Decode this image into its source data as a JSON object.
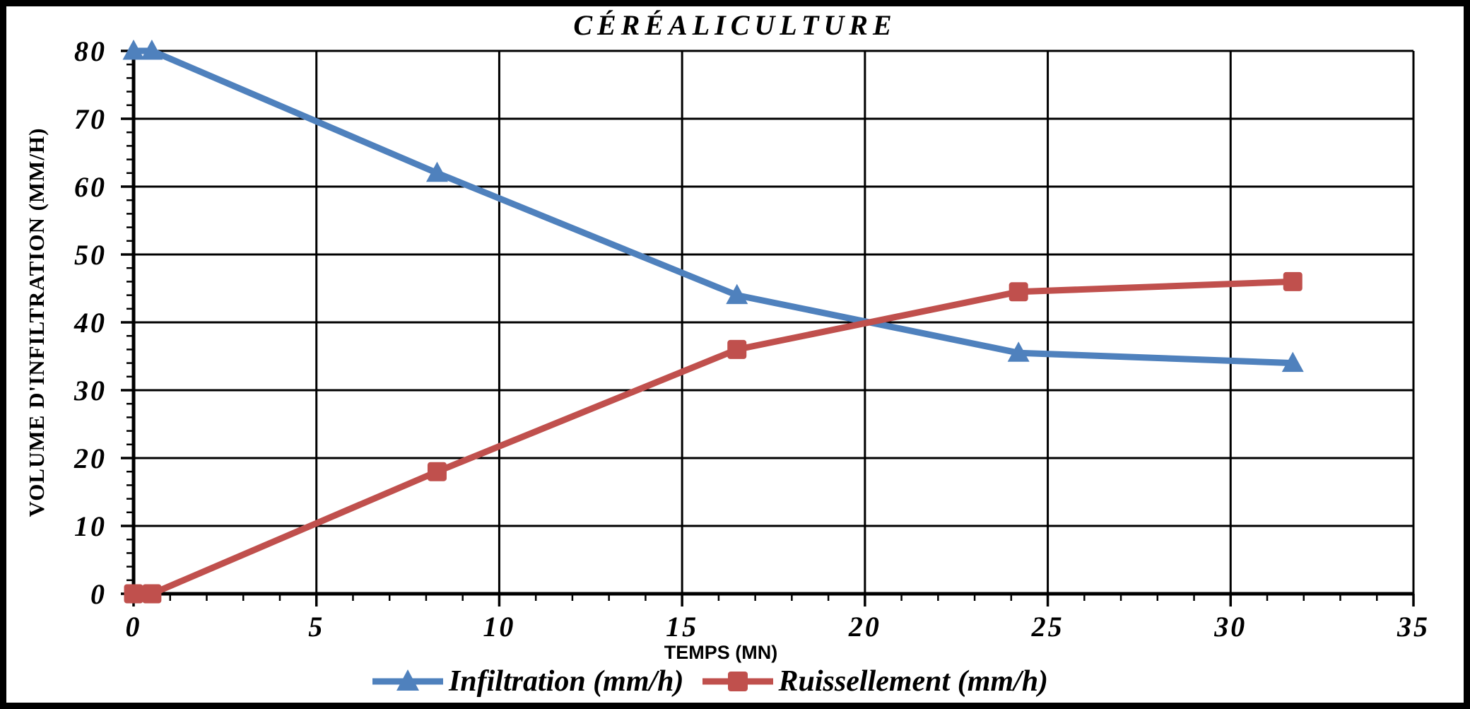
{
  "chart_data": {
    "type": "line",
    "title": "CÉRÉALICULTURE",
    "xlabel": "TEMPS (MN)",
    "ylabel": "VOLUME D'INFILTRATION (MM/H)",
    "xlim": [
      0,
      35
    ],
    "ylim": [
      0,
      80
    ],
    "x_major_ticks": [
      0,
      5,
      10,
      15,
      20,
      25,
      30,
      35
    ],
    "x_minor_step": 1,
    "y_major_ticks": [
      0,
      10,
      20,
      30,
      40,
      50,
      60,
      70,
      80
    ],
    "y_minor_step": 2,
    "grid": "major-both",
    "legend_position": "bottom",
    "colors": {
      "grid": "#000000",
      "axis": "#000000",
      "background": "#FFFFFF",
      "frame": "#000000"
    },
    "series": [
      {
        "name": "Infiltration (mm/h)",
        "color": "#4F81BD",
        "marker": "triangle",
        "x": [
          0,
          0.5,
          8.3,
          16.5,
          24.2,
          31.7
        ],
        "y": [
          80,
          80,
          62,
          44,
          35.5,
          34
        ]
      },
      {
        "name": "Ruissellement (mm/h)",
        "color": "#C0504D",
        "marker": "square",
        "x": [
          0,
          0.5,
          8.3,
          16.5,
          24.2,
          31.7
        ],
        "y": [
          0,
          0,
          18,
          36,
          44.5,
          46
        ]
      }
    ]
  }
}
